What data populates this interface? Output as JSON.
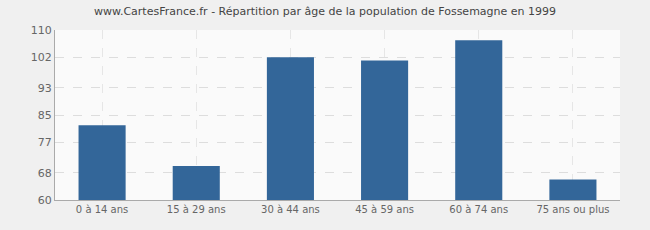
{
  "chart_data": {
    "type": "bar",
    "title": "www.CartesFrance.fr - Répartition par âge de la population de Fossemagne en 1999",
    "categories": [
      "0 à 14 ans",
      "15 à 29 ans",
      "30 à 44 ans",
      "45 à 59 ans",
      "60 à 74 ans",
      "75 ans ou plus"
    ],
    "values": [
      82,
      70,
      102,
      101,
      107,
      66
    ],
    "color": "#336699",
    "ylim": [
      60,
      110
    ],
    "yticks": [
      60,
      68,
      77,
      85,
      93,
      102,
      110
    ],
    "grid": true
  }
}
